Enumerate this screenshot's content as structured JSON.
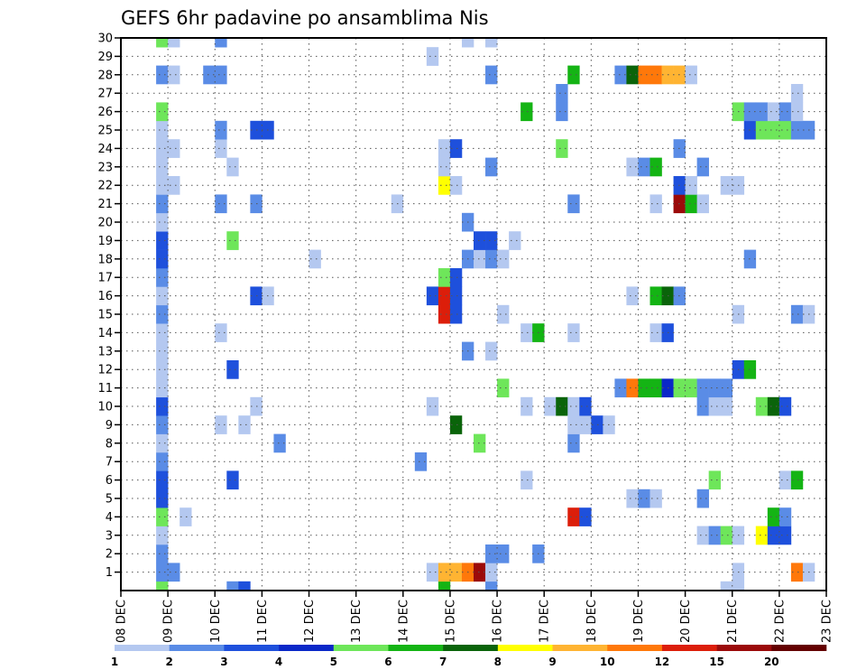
{
  "chart_data": {
    "type": "heatmap",
    "title": "GEFS 6hr padavine po ansamblima Nis",
    "x_tick_labels": [
      "08 DEC",
      "09 DEC",
      "10 DEC",
      "11 DEC",
      "12 DEC",
      "13 DEC",
      "14 DEC",
      "15 DEC",
      "16 DEC",
      "17 DEC",
      "18 DEC",
      "19 DEC",
      "20 DEC",
      "21 DEC",
      "22 DEC",
      "23 DEC"
    ],
    "y_tick_labels": [
      "1",
      "2",
      "3",
      "4",
      "5",
      "6",
      "7",
      "8",
      "9",
      "10",
      "11",
      "12",
      "13",
      "14",
      "15",
      "16",
      "17",
      "18",
      "19",
      "20",
      "21",
      "22",
      "23",
      "24",
      "25",
      "26",
      "27",
      "28",
      "29",
      "30"
    ],
    "xlim_days": [
      8,
      23
    ],
    "ylim_members": [
      0,
      30
    ],
    "grid": "dotted",
    "legend": {
      "placement": "bottom",
      "colors": [
        "#b4c8f0",
        "#5a8ce6",
        "#1e50dc",
        "#0a28c8",
        "#6ee65a",
        "#14b414",
        "#0a640a",
        "#ffff00",
        "#ffb432",
        "#ff780a",
        "#dc1e0a",
        "#9b0a0a",
        "#640000"
      ],
      "labels": [
        "1",
        "2",
        "3",
        "4",
        "5",
        "6",
        "7",
        "8",
        "9",
        "10",
        "12",
        "15",
        "20"
      ]
    },
    "cell_columns": [
      {
        "x": "09 DEC 00Z",
        "cells": [
          [
            0,
            5
          ],
          [
            1,
            2
          ],
          [
            2,
            2
          ],
          [
            3,
            1
          ],
          [
            4,
            5
          ],
          [
            5,
            3
          ],
          [
            6,
            3
          ],
          [
            7,
            2
          ],
          [
            8,
            1
          ],
          [
            9,
            2
          ],
          [
            10,
            3
          ],
          [
            11,
            1
          ],
          [
            12,
            1
          ],
          [
            13,
            1
          ],
          [
            14,
            1
          ],
          [
            15,
            2
          ],
          [
            16,
            1
          ],
          [
            17,
            2
          ],
          [
            18,
            3
          ],
          [
            19,
            3
          ],
          [
            20,
            1
          ],
          [
            21,
            2
          ],
          [
            22,
            1
          ],
          [
            23,
            1
          ],
          [
            24,
            1
          ],
          [
            25,
            1
          ],
          [
            26,
            5
          ],
          [
            28,
            2
          ],
          [
            30,
            5
          ]
        ]
      },
      {
        "x": "09 DEC 06Z",
        "cells": [
          [
            1,
            2
          ],
          [
            22,
            1
          ],
          [
            24,
            1
          ],
          [
            28,
            1
          ],
          [
            30,
            1
          ]
        ]
      },
      {
        "x": "09 DEC 12Z",
        "cells": [
          [
            4,
            1
          ]
        ]
      },
      {
        "x": "10 DEC 00Z",
        "cells": [
          [
            28,
            2
          ]
        ]
      },
      {
        "x": "10 DEC 06Z",
        "cells": [
          [
            9,
            1
          ],
          [
            14,
            1
          ],
          [
            21,
            2
          ],
          [
            24,
            1
          ],
          [
            25,
            2
          ],
          [
            28,
            2
          ],
          [
            30,
            2
          ]
        ]
      },
      {
        "x": "10 DEC 12Z",
        "cells": [
          [
            0,
            2
          ],
          [
            6,
            3
          ],
          [
            12,
            3
          ],
          [
            19,
            5
          ],
          [
            23,
            1
          ]
        ]
      },
      {
        "x": "10 DEC 18Z",
        "cells": [
          [
            0,
            3
          ],
          [
            9,
            1
          ]
        ]
      },
      {
        "x": "11 DEC 00Z",
        "cells": [
          [
            10,
            1
          ],
          [
            16,
            3
          ],
          [
            21,
            2
          ],
          [
            25,
            3
          ]
        ]
      },
      {
        "x": "11 DEC 06Z",
        "cells": [
          [
            16,
            1
          ],
          [
            25,
            3
          ]
        ]
      },
      {
        "x": "11 DEC 12Z",
        "cells": [
          [
            8,
            2
          ]
        ]
      },
      {
        "x": "12 DEC 06Z",
        "cells": [
          [
            18,
            1
          ]
        ]
      },
      {
        "x": "14 DEC 00Z",
        "cells": [
          [
            21,
            1
          ]
        ]
      },
      {
        "x": "14 DEC 12Z",
        "cells": [
          [
            7,
            2
          ]
        ]
      },
      {
        "x": "14 DEC 18Z",
        "cells": [
          [
            1,
            1
          ],
          [
            10,
            1
          ],
          [
            16,
            3
          ],
          [
            29,
            1
          ]
        ]
      },
      {
        "x": "15 DEC 00Z",
        "cells": [
          [
            0,
            6
          ],
          [
            1,
            9
          ],
          [
            15,
            11
          ],
          [
            16,
            11
          ],
          [
            17,
            5
          ],
          [
            22,
            8
          ],
          [
            23,
            1
          ],
          [
            24,
            1
          ]
        ]
      },
      {
        "x": "15 DEC 06Z",
        "cells": [
          [
            1,
            9
          ],
          [
            9,
            7
          ],
          [
            15,
            3
          ],
          [
            16,
            3
          ],
          [
            17,
            3
          ],
          [
            22,
            1
          ],
          [
            24,
            3
          ]
        ]
      },
      {
        "x": "15 DEC 12Z",
        "cells": [
          [
            1,
            10
          ],
          [
            13,
            2
          ],
          [
            18,
            2
          ],
          [
            20,
            2
          ],
          [
            30,
            1
          ]
        ]
      },
      {
        "x": "15 DEC 18Z",
        "cells": [
          [
            1,
            12
          ],
          [
            8,
            5
          ],
          [
            18,
            1
          ],
          [
            19,
            3
          ]
        ]
      },
      {
        "x": "16 DEC 00Z",
        "cells": [
          [
            0,
            2
          ],
          [
            1,
            1
          ],
          [
            2,
            2
          ],
          [
            13,
            1
          ],
          [
            18,
            2
          ],
          [
            19,
            3
          ],
          [
            23,
            2
          ],
          [
            28,
            2
          ],
          [
            30,
            1
          ]
        ]
      },
      {
        "x": "16 DEC 06Z",
        "cells": [
          [
            2,
            2
          ],
          [
            11,
            5
          ],
          [
            15,
            1
          ],
          [
            18,
            1
          ]
        ]
      },
      {
        "x": "16 DEC 12Z",
        "cells": [
          [
            19,
            1
          ]
        ]
      },
      {
        "x": "16 DEC 18Z",
        "cells": [
          [
            6,
            1
          ],
          [
            10,
            1
          ],
          [
            14,
            1
          ],
          [
            26,
            6
          ]
        ]
      },
      {
        "x": "17 DEC 00Z",
        "cells": [
          [
            2,
            2
          ],
          [
            14,
            6
          ]
        ]
      },
      {
        "x": "17 DEC 06Z",
        "cells": [
          [
            10,
            1
          ]
        ]
      },
      {
        "x": "17 DEC 12Z",
        "cells": [
          [
            10,
            7
          ],
          [
            24,
            5
          ],
          [
            26,
            2
          ],
          [
            27,
            2
          ]
        ]
      },
      {
        "x": "17 DEC 18Z",
        "cells": [
          [
            4,
            11
          ],
          [
            8,
            2
          ],
          [
            9,
            1
          ],
          [
            10,
            1
          ],
          [
            14,
            1
          ],
          [
            21,
            2
          ],
          [
            28,
            6
          ]
        ]
      },
      {
        "x": "18 DEC 00Z",
        "cells": [
          [
            4,
            3
          ],
          [
            9,
            1
          ],
          [
            10,
            3
          ]
        ]
      },
      {
        "x": "18 DEC 06Z",
        "cells": [
          [
            9,
            3
          ]
        ]
      },
      {
        "x": "18 DEC 12Z",
        "cells": [
          [
            9,
            1
          ]
        ]
      },
      {
        "x": "18 DEC 18Z",
        "cells": [
          [
            11,
            2
          ],
          [
            28,
            2
          ]
        ]
      },
      {
        "x": "19 DEC 00Z",
        "cells": [
          [
            5,
            1
          ],
          [
            11,
            10
          ],
          [
            16,
            1
          ],
          [
            23,
            1
          ],
          [
            28,
            7
          ]
        ]
      },
      {
        "x": "19 DEC 06Z",
        "cells": [
          [
            5,
            2
          ],
          [
            11,
            6
          ],
          [
            23,
            2
          ],
          [
            28,
            10
          ]
        ]
      },
      {
        "x": "19 DEC 12Z",
        "cells": [
          [
            5,
            1
          ],
          [
            11,
            6
          ],
          [
            14,
            1
          ],
          [
            16,
            6
          ],
          [
            21,
            1
          ],
          [
            23,
            6
          ],
          [
            28,
            10
          ]
        ]
      },
      {
        "x": "19 DEC 18Z",
        "cells": [
          [
            11,
            4
          ],
          [
            14,
            3
          ],
          [
            16,
            7
          ],
          [
            28,
            9
          ]
        ]
      },
      {
        "x": "20 DEC 00Z",
        "cells": [
          [
            11,
            5
          ],
          [
            16,
            2
          ],
          [
            21,
            12
          ],
          [
            22,
            3
          ],
          [
            24,
            2
          ],
          [
            28,
            9
          ]
        ]
      },
      {
        "x": "20 DEC 06Z",
        "cells": [
          [
            11,
            5
          ],
          [
            21,
            6
          ],
          [
            22,
            1
          ],
          [
            28,
            1
          ]
        ]
      },
      {
        "x": "20 DEC 12Z",
        "cells": [
          [
            3,
            1
          ],
          [
            5,
            2
          ],
          [
            10,
            2
          ],
          [
            11,
            2
          ],
          [
            21,
            1
          ],
          [
            23,
            2
          ]
        ]
      },
      {
        "x": "20 DEC 18Z",
        "cells": [
          [
            3,
            2
          ],
          [
            6,
            5
          ],
          [
            10,
            1
          ],
          [
            11,
            2
          ]
        ]
      },
      {
        "x": "21 DEC 00Z",
        "cells": [
          [
            0,
            1
          ],
          [
            3,
            5
          ],
          [
            10,
            1
          ],
          [
            11,
            2
          ],
          [
            22,
            1
          ]
        ]
      },
      {
        "x": "21 DEC 06Z",
        "cells": [
          [
            0,
            1
          ],
          [
            1,
            1
          ],
          [
            3,
            1
          ],
          [
            12,
            3
          ],
          [
            15,
            1
          ],
          [
            22,
            1
          ],
          [
            26,
            5
          ]
        ]
      },
      {
        "x": "21 DEC 12Z",
        "cells": [
          [
            12,
            6
          ],
          [
            18,
            2
          ],
          [
            25,
            3
          ],
          [
            26,
            2
          ]
        ]
      },
      {
        "x": "21 DEC 18Z",
        "cells": [
          [
            3,
            8
          ],
          [
            10,
            5
          ],
          [
            25,
            5
          ],
          [
            26,
            2
          ]
        ]
      },
      {
        "x": "22 DEC 00Z",
        "cells": [
          [
            3,
            3
          ],
          [
            4,
            6
          ],
          [
            10,
            7
          ],
          [
            25,
            5
          ],
          [
            26,
            1
          ]
        ]
      },
      {
        "x": "22 DEC 06Z",
        "cells": [
          [
            3,
            3
          ],
          [
            4,
            2
          ],
          [
            6,
            1
          ],
          [
            10,
            3
          ],
          [
            25,
            5
          ],
          [
            26,
            2
          ]
        ]
      },
      {
        "x": "22 DEC 12Z",
        "cells": [
          [
            1,
            10
          ],
          [
            6,
            6
          ],
          [
            15,
            2
          ],
          [
            25,
            2
          ],
          [
            26,
            1
          ],
          [
            27,
            1
          ]
        ]
      },
      {
        "x": "22 DEC 18Z",
        "cells": [
          [
            1,
            1
          ],
          [
            15,
            1
          ],
          [
            25,
            2
          ]
        ]
      }
    ]
  }
}
